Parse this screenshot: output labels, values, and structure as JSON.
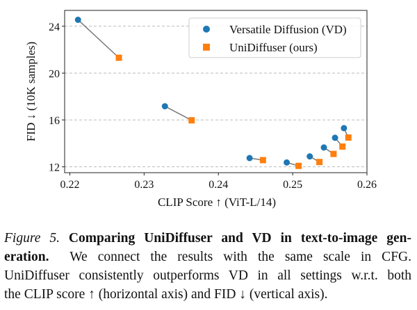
{
  "chart_data": {
    "type": "scatter",
    "title": "",
    "xlabel": "CLIP Score ↑ (ViT-L/14)",
    "ylabel": "FID ↓ (10K samples)",
    "xlim": [
      0.2193,
      0.26
    ],
    "ylim": [
      11.5,
      25.35
    ],
    "xticks": [
      0.22,
      0.23,
      0.24,
      0.25,
      0.26
    ],
    "xtick_labels": [
      "0.22",
      "0.23",
      "0.24",
      "0.25",
      "0.26"
    ],
    "yticks": [
      12,
      16,
      20,
      24
    ],
    "ytick_labels": [
      "12",
      "16",
      "20",
      "24"
    ],
    "grid": "horizontal dashed",
    "legend_position": "top-right",
    "pairs_connected": true,
    "series": [
      {
        "name": "Versatile Diffusion (VD)",
        "marker": "circle",
        "color": "#1f77b4",
        "x": [
          0.2211,
          0.2328,
          0.2442,
          0.2492,
          0.2523,
          0.2542,
          0.2557,
          0.2569
        ],
        "y": [
          24.55,
          17.17,
          12.75,
          12.37,
          12.89,
          13.65,
          14.48,
          15.3
        ]
      },
      {
        "name": "UniDiffuser (ours)",
        "marker": "square",
        "color": "#ff7f0e",
        "x": [
          0.2266,
          0.2364,
          0.246,
          0.2508,
          0.2536,
          0.2555,
          0.2567,
          0.2575
        ],
        "y": [
          21.31,
          15.97,
          12.57,
          12.08,
          12.41,
          13.1,
          13.73,
          14.5
        ]
      }
    ]
  },
  "caption": {
    "figure_label": "Figure 5.",
    "bold_line1": "Comparing UniDiffuser and VD in text-to-image gen-",
    "bold_line2": "eration.",
    "line2_rest": "We connect the results with the same scale in CFG.",
    "line3": "UniDiffuser consistently outperforms VD in all settings w.r.t. both",
    "line4": "the CLIP score ↑ (horizontal axis) and FID ↓ (vertical axis)."
  }
}
